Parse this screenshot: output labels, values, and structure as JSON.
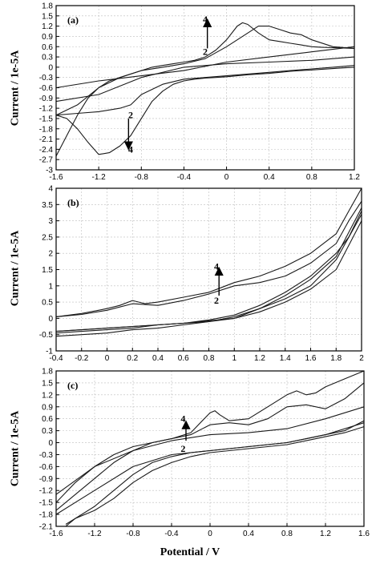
{
  "xlabel": "Potential / V",
  "chart_data": [
    {
      "type": "line",
      "panel_label": "(a)",
      "ylabel": "Current / 1e-5A",
      "xlabel": "",
      "xlim": [
        -1.6,
        1.2
      ],
      "ylim": [
        -3.0,
        1.8
      ],
      "x_ticks": [
        -1.6,
        -1.2,
        -0.8,
        -0.4,
        0,
        0.4,
        0.8,
        1.2
      ],
      "y_ticks": [
        1.8,
        1.5,
        1.2,
        0.9,
        0.6,
        0.3,
        0,
        -0.3,
        -0.6,
        -0.9,
        -1.2,
        -1.5,
        -1.8,
        -2.1,
        -2.4,
        -2.7,
        -3.0
      ],
      "grid": true,
      "annotations": [
        {
          "text": "4",
          "x": -0.2,
          "y": 1.4
        },
        {
          "text": "2",
          "x": -0.2,
          "y": 0.45
        },
        {
          "text": "2",
          "x": -0.9,
          "y": -1.4
        },
        {
          "text": "4",
          "x": -0.9,
          "y": -2.4
        }
      ],
      "arrows": [
        {
          "x": -0.18,
          "y_from": 0.55,
          "y_to": 1.3
        },
        {
          "x": -0.92,
          "y_from": -1.5,
          "y_to": -2.3
        }
      ],
      "series": [
        {
          "x": [
            -1.6,
            -1.5,
            -1.4,
            -1.3,
            -1.2,
            -1.1,
            -1.0,
            -0.9,
            -0.8,
            -0.7,
            -0.6,
            -0.5,
            -0.4,
            -0.3,
            -0.2,
            -0.1,
            0,
            0.1,
            0.15,
            0.2,
            0.3,
            0.4,
            0.5,
            0.6,
            0.7,
            0.8,
            0.9,
            1.0,
            1.1,
            1.2
          ],
          "y": [
            -2.6,
            -2.0,
            -1.4,
            -0.9,
            -0.6,
            -0.4,
            -0.3,
            -0.2,
            -0.1,
            0.0,
            0.05,
            0.1,
            0.15,
            0.2,
            0.3,
            0.5,
            0.8,
            1.2,
            1.3,
            1.25,
            1.0,
            0.8,
            0.75,
            0.7,
            0.65,
            0.6,
            0.58,
            0.57,
            0.56,
            0.55
          ]
        },
        {
          "x": [
            1.2,
            1.1,
            1.0,
            0.9,
            0.8,
            0.7,
            0.6,
            0.5,
            0.4,
            0.3,
            0.2,
            0.1,
            0,
            -0.1,
            -0.2,
            -0.3,
            -0.4,
            -0.5,
            -0.6,
            -0.7,
            -0.8,
            -0.9,
            -1.0,
            -1.1,
            -1.2,
            -1.3,
            -1.4,
            -1.5,
            -1.6
          ],
          "y": [
            0.0,
            -0.02,
            -0.04,
            -0.06,
            -0.08,
            -0.1,
            -0.12,
            -0.15,
            -0.18,
            -0.2,
            -0.22,
            -0.25,
            -0.28,
            -0.3,
            -0.32,
            -0.35,
            -0.4,
            -0.5,
            -0.7,
            -1.0,
            -1.5,
            -2.0,
            -2.3,
            -2.5,
            -2.55,
            -2.2,
            -1.8,
            -1.5,
            -1.4
          ]
        },
        {
          "x": [
            -1.6,
            -1.4,
            -1.2,
            -1.0,
            -0.8,
            -0.6,
            -0.4,
            -0.2,
            0,
            0.2,
            0.3,
            0.4,
            0.5,
            0.6,
            0.7,
            0.8,
            1.0,
            1.2
          ],
          "y": [
            -1.4,
            -1.1,
            -0.6,
            -0.3,
            -0.1,
            0.0,
            0.1,
            0.25,
            0.6,
            1.0,
            1.2,
            1.2,
            1.1,
            1.0,
            0.95,
            0.8,
            0.6,
            0.55
          ]
        },
        {
          "x": [
            1.2,
            1.0,
            0.8,
            0.6,
            0.4,
            0.2,
            0,
            -0.2,
            -0.4,
            -0.6,
            -0.8,
            -0.9,
            -1.0,
            -1.2,
            -1.4,
            -1.6
          ],
          "y": [
            0.05,
            0.0,
            -0.05,
            -0.1,
            -0.15,
            -0.2,
            -0.25,
            -0.3,
            -0.35,
            -0.5,
            -0.8,
            -1.1,
            -1.2,
            -1.3,
            -1.35,
            -1.4
          ]
        },
        {
          "x": [
            -1.6,
            -1.2,
            -0.8,
            -0.4,
            0,
            0.4,
            0.8,
            1.2
          ],
          "y": [
            -0.6,
            -0.4,
            -0.25,
            -0.1,
            0.15,
            0.3,
            0.45,
            0.6
          ]
        },
        {
          "x": [
            1.2,
            0.8,
            0.4,
            0,
            -0.4,
            -0.8,
            -1.2,
            -1.6
          ],
          "y": [
            0.3,
            0.2,
            0.15,
            0.1,
            0.0,
            -0.3,
            -0.8,
            -1.0
          ]
        }
      ]
    },
    {
      "type": "line",
      "panel_label": "(b)",
      "ylabel": "Current / 1e-5A",
      "xlabel": "",
      "xlim": [
        -0.4,
        2.0
      ],
      "ylim": [
        -1.0,
        4.0
      ],
      "x_ticks": [
        -0.4,
        -0.2,
        0,
        0.2,
        0.4,
        0.6,
        0.8,
        1.0,
        1.2,
        1.4,
        1.6,
        1.8,
        2.0
      ],
      "y_ticks": [
        4.0,
        3.5,
        3.0,
        2.5,
        2.0,
        1.5,
        1.0,
        0.5,
        0,
        -0.5,
        -1.0
      ],
      "grid": true,
      "annotations": [
        {
          "text": "4",
          "x": 0.86,
          "y": 1.6
        },
        {
          "text": "2",
          "x": 0.86,
          "y": 0.55
        }
      ],
      "arrows": [
        {
          "x": 0.88,
          "y_from": 0.7,
          "y_to": 1.45
        }
      ],
      "series": [
        {
          "x": [
            -0.4,
            -0.2,
            0,
            0.1,
            0.2,
            0.3,
            0.4,
            0.6,
            0.8,
            0.9,
            1.0,
            1.1,
            1.2,
            1.4,
            1.6,
            1.8,
            1.9,
            2.0
          ],
          "y": [
            0.05,
            0.15,
            0.3,
            0.4,
            0.55,
            0.45,
            0.5,
            0.65,
            0.8,
            0.95,
            1.1,
            1.2,
            1.3,
            1.6,
            2.0,
            2.6,
            3.3,
            4.0
          ]
        },
        {
          "x": [
            2.0,
            1.9,
            1.8,
            1.6,
            1.4,
            1.2,
            1.0,
            0.8,
            0.6,
            0.4,
            0.2,
            0,
            -0.2,
            -0.4
          ],
          "y": [
            3.3,
            2.5,
            2.0,
            1.3,
            0.8,
            0.4,
            0.1,
            -0.05,
            -0.15,
            -0.2,
            -0.3,
            -0.35,
            -0.4,
            -0.45
          ]
        },
        {
          "x": [
            -0.4,
            -0.2,
            0,
            0.2,
            0.4,
            0.6,
            0.8,
            1.0,
            1.2,
            1.4,
            1.6,
            1.8,
            1.9,
            2.0
          ],
          "y": [
            0.05,
            0.12,
            0.25,
            0.45,
            0.4,
            0.55,
            0.75,
            1.0,
            1.1,
            1.3,
            1.7,
            2.3,
            3.0,
            3.6
          ]
        },
        {
          "x": [
            2.0,
            1.8,
            1.6,
            1.4,
            1.2,
            1.0,
            0.8,
            0.6,
            0.4,
            0.2,
            0,
            -0.2,
            -0.4
          ],
          "y": [
            3.2,
            1.8,
            1.0,
            0.6,
            0.3,
            0.05,
            -0.1,
            -0.2,
            -0.3,
            -0.35,
            -0.45,
            -0.5,
            -0.55
          ]
        },
        {
          "x": [
            -0.4,
            0,
            0.4,
            0.8,
            1.0,
            1.2,
            1.4,
            1.6,
            1.8,
            2.0
          ],
          "y": [
            -0.4,
            -0.3,
            -0.2,
            -0.1,
            0.0,
            0.3,
            0.7,
            1.2,
            1.9,
            3.4
          ]
        },
        {
          "x": [
            2.0,
            1.8,
            1.6,
            1.4,
            1.2,
            1.0,
            0.6,
            0.2,
            -0.2,
            -0.4
          ],
          "y": [
            3.0,
            1.5,
            0.9,
            0.5,
            0.2,
            0.0,
            -0.15,
            -0.25,
            -0.35,
            -0.4
          ]
        }
      ]
    },
    {
      "type": "line",
      "panel_label": "(c)",
      "ylabel": "Current / 1e-5A",
      "xlabel": "Potential / V",
      "xlim": [
        -1.6,
        1.6
      ],
      "ylim": [
        -2.1,
        1.8
      ],
      "x_ticks": [
        -1.6,
        -1.2,
        -0.8,
        -0.4,
        0,
        0.4,
        0.8,
        1.2,
        1.6
      ],
      "y_ticks": [
        1.8,
        1.5,
        1.2,
        0.9,
        0.6,
        0.3,
        0,
        -0.3,
        -0.6,
        -0.9,
        -1.2,
        -1.5,
        -1.8,
        -2.1
      ],
      "grid": true,
      "annotations": [
        {
          "text": "4",
          "x": -0.28,
          "y": 0.6
        },
        {
          "text": "2",
          "x": -0.28,
          "y": -0.15
        }
      ],
      "arrows": [
        {
          "x": -0.25,
          "y_from": 0.05,
          "y_to": 0.45
        }
      ],
      "series": [
        {
          "x": [
            -1.6,
            -1.4,
            -1.2,
            -1.0,
            -0.8,
            -0.6,
            -0.4,
            -0.2,
            0,
            0.05,
            0.1,
            0.2,
            0.4,
            0.6,
            0.8,
            0.9,
            1.0,
            1.1,
            1.2,
            1.4,
            1.6
          ],
          "y": [
            -1.5,
            -1.0,
            -0.6,
            -0.3,
            -0.1,
            0.0,
            0.1,
            0.25,
            0.75,
            0.8,
            0.7,
            0.55,
            0.6,
            0.9,
            1.2,
            1.3,
            1.2,
            1.25,
            1.4,
            1.6,
            1.8
          ]
        },
        {
          "x": [
            1.6,
            1.4,
            1.2,
            1.0,
            0.8,
            0.6,
            0.4,
            0.2,
            0,
            -0.2,
            -0.4,
            -0.6,
            -0.8,
            -1.0,
            -1.2,
            -1.4,
            -1.5
          ],
          "y": [
            0.55,
            0.3,
            0.2,
            0.1,
            0.0,
            -0.05,
            -0.1,
            -0.15,
            -0.2,
            -0.25,
            -0.35,
            -0.5,
            -0.8,
            -1.2,
            -1.6,
            -1.9,
            -2.1
          ]
        },
        {
          "x": [
            -1.6,
            -1.4,
            -1.2,
            -1.0,
            -0.8,
            -0.6,
            -0.4,
            -0.2,
            0,
            0.2,
            0.4,
            0.6,
            0.8,
            1.0,
            1.2,
            1.4,
            1.6
          ],
          "y": [
            -1.7,
            -1.3,
            -0.9,
            -0.5,
            -0.2,
            0.0,
            0.1,
            0.2,
            0.45,
            0.5,
            0.45,
            0.6,
            0.9,
            0.95,
            0.85,
            1.1,
            1.5
          ]
        },
        {
          "x": [
            1.6,
            1.4,
            1.2,
            1.0,
            0.8,
            0.6,
            0.4,
            0.2,
            0,
            -0.2,
            -0.4,
            -0.6,
            -0.8,
            -1.0,
            -1.2,
            -1.4,
            -1.5
          ],
          "y": [
            0.4,
            0.25,
            0.15,
            0.05,
            -0.05,
            -0.1,
            -0.15,
            -0.2,
            -0.25,
            -0.35,
            -0.5,
            -0.7,
            -1.0,
            -1.4,
            -1.7,
            -1.9,
            -2.05
          ]
        },
        {
          "x": [
            -1.6,
            -1.2,
            -0.8,
            -0.4,
            0,
            0.4,
            0.8,
            1.2,
            1.6
          ],
          "y": [
            -1.3,
            -0.6,
            -0.2,
            0.05,
            0.2,
            0.25,
            0.35,
            0.6,
            0.9
          ]
        },
        {
          "x": [
            1.6,
            1.2,
            0.8,
            0.4,
            0,
            -0.4,
            -0.8,
            -1.2,
            -1.6
          ],
          "y": [
            0.5,
            0.2,
            0.0,
            -0.1,
            -0.2,
            -0.3,
            -0.6,
            -1.2,
            -1.8
          ]
        }
      ]
    }
  ]
}
